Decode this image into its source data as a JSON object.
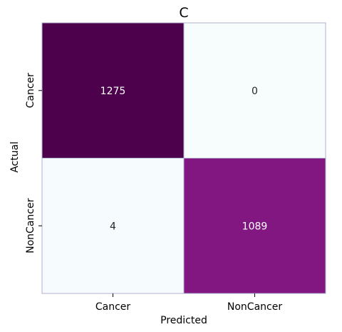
{
  "chart_data": {
    "type": "heatmap",
    "title": "C",
    "xlabel": "Predicted",
    "ylabel": "Actual",
    "x_categories": [
      "Cancer",
      "NonCancer"
    ],
    "y_categories": [
      "Cancer",
      "NonCancer"
    ],
    "values": [
      [
        1275,
        0
      ],
      [
        4,
        1089
      ]
    ],
    "colormap": "BuPu",
    "colorbar": false,
    "grid": false,
    "colors": {
      "high": "#4d004b",
      "mid": "#81177f",
      "low": "#f7fcfd",
      "cell_border": "#b0b0d0",
      "text_dark_bg": "#ffffff",
      "text_light_bg": "#262626"
    }
  }
}
